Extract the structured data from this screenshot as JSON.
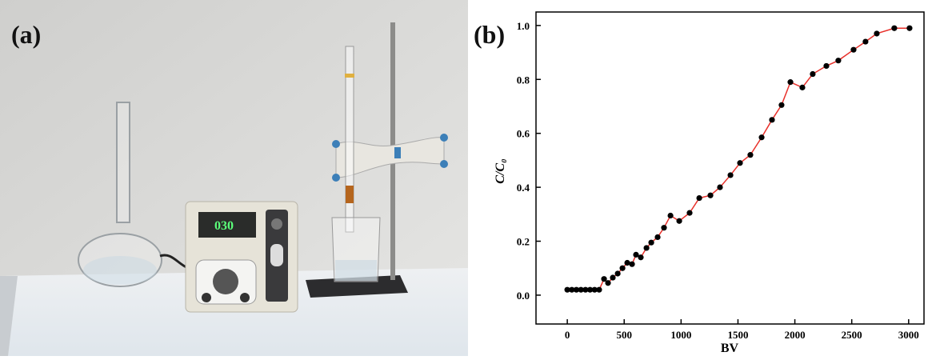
{
  "panel_a": {
    "label": "(a)",
    "display": "030"
  },
  "chart_data": {
    "type": "line",
    "panel_label": "(b)",
    "xlabel": "BV",
    "ylabel": "C/C₀",
    "x": [
      0,
      40,
      80,
      120,
      160,
      200,
      240,
      280,
      323,
      358,
      400,
      443,
      485,
      527,
      569,
      604,
      646,
      696,
      738,
      794,
      850,
      907,
      984,
      1075,
      1160,
      1258,
      1342,
      1434,
      1518,
      1609,
      1708,
      1799,
      1883,
      1961,
      2066,
      2157,
      2277,
      2382,
      2516,
      2621,
      2720,
      2874,
      3008
    ],
    "series": [
      {
        "name": "C/C₀",
        "color": "#e8302a",
        "marker_color": "#000000",
        "values": [
          0.02,
          0.02,
          0.02,
          0.02,
          0.02,
          0.02,
          0.02,
          0.02,
          0.06,
          0.045,
          0.065,
          0.08,
          0.1,
          0.12,
          0.115,
          0.15,
          0.14,
          0.175,
          0.195,
          0.215,
          0.25,
          0.295,
          0.275,
          0.305,
          0.36,
          0.37,
          0.4,
          0.445,
          0.49,
          0.52,
          0.585,
          0.65,
          0.705,
          0.79,
          0.77,
          0.82,
          0.85,
          0.87,
          0.91,
          0.94,
          0.97,
          0.99,
          0.99
        ]
      }
    ],
    "xlim": [
      -275,
      3135
    ],
    "ylim": [
      -0.107,
      1.05
    ],
    "xticks": [
      0,
      500,
      1000,
      1500,
      2000,
      2500,
      3000
    ],
    "yticks": [
      {
        "value": 0,
        "label": "0.0"
      },
      0.2,
      0.4,
      0.6,
      0.8,
      {
        "value": 1,
        "label": "1.0"
      }
    ]
  }
}
